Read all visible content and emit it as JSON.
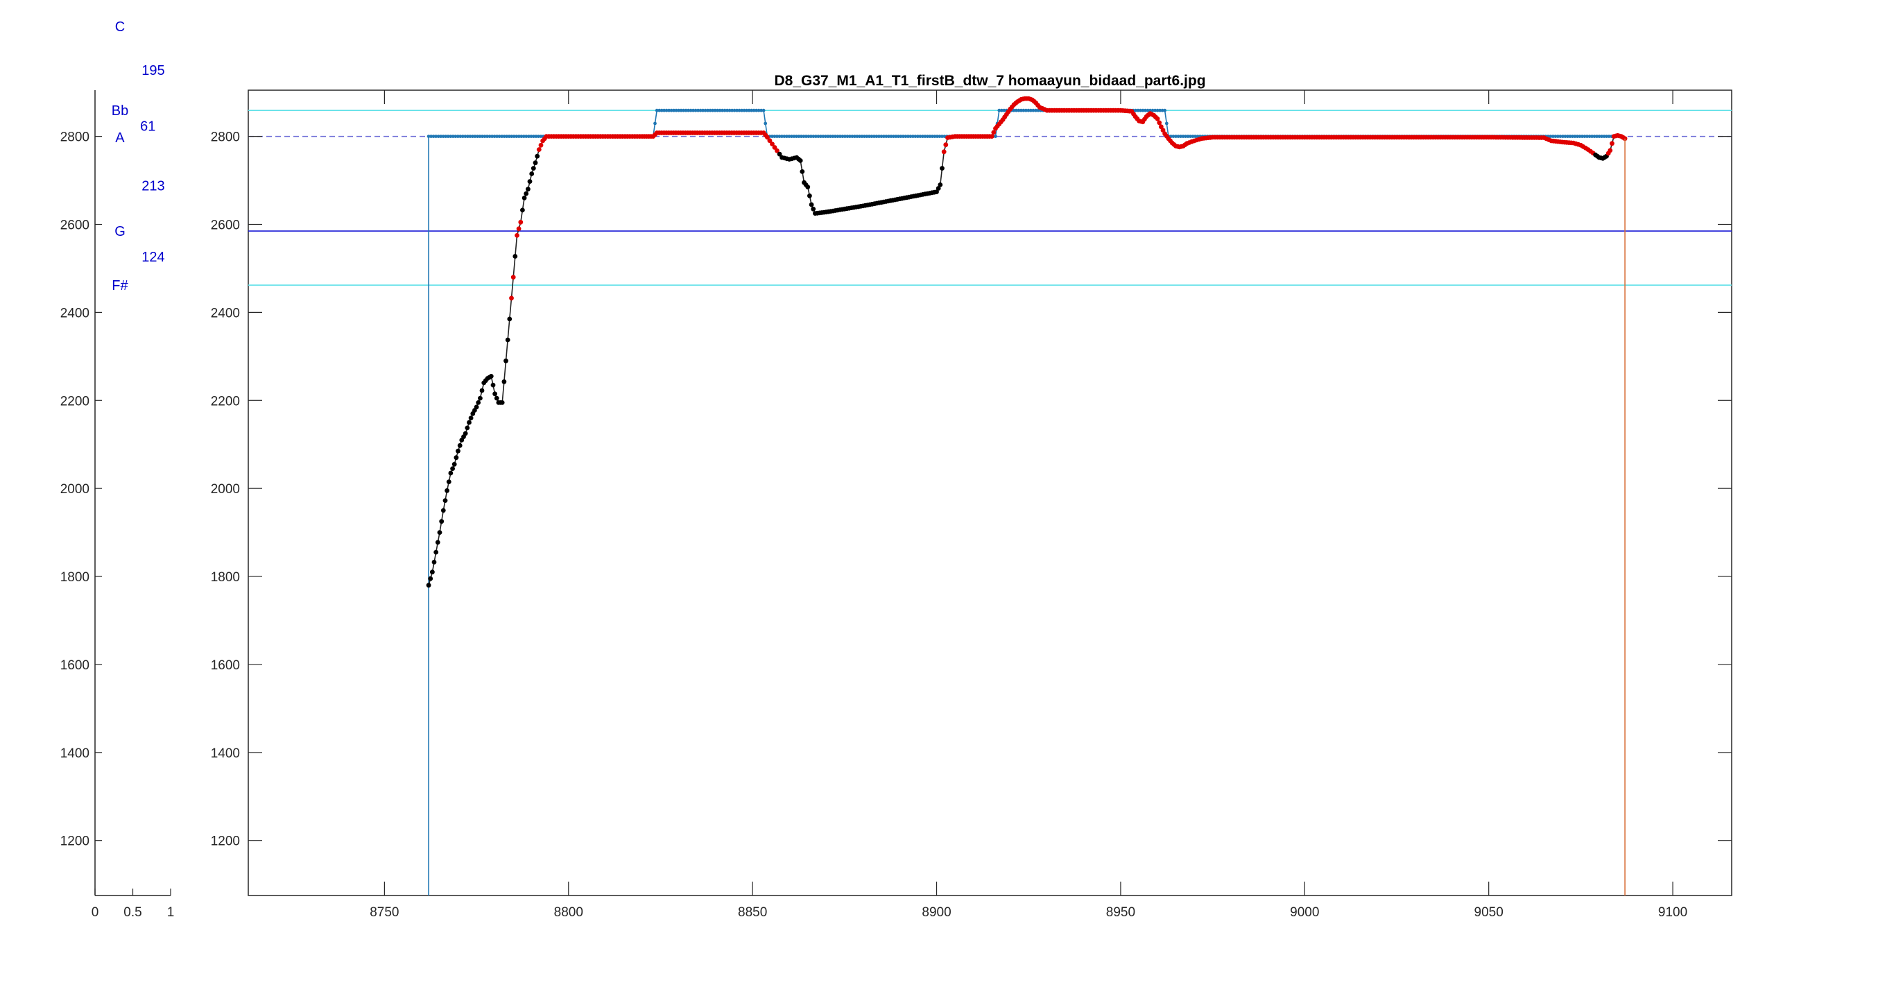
{
  "chart_data": [
    {
      "type": "scatter",
      "title": "",
      "xlabel": "",
      "ylabel": "",
      "xlim": [
        0,
        1
      ],
      "ylim": [
        1075,
        2905
      ],
      "xticks": [
        "0",
        "0.5",
        "1"
      ],
      "yticks": [
        "1200",
        "1400",
        "1600",
        "1800",
        "2000",
        "2200",
        "2400",
        "2600",
        "2800"
      ],
      "y_tick_values": [
        1200,
        1400,
        1600,
        1800,
        2000,
        2200,
        2400,
        2600,
        2800
      ],
      "x_tick_values": [
        0,
        0.5,
        1
      ],
      "note_names": [
        {
          "label": "C",
          "x": 0.33,
          "y": 3050
        },
        {
          "label": "Bb",
          "x": 0.33,
          "y": 2859
        },
        {
          "label": "A",
          "x": 0.33,
          "y": 2798
        },
        {
          "label": "G",
          "x": 0.33,
          "y": 2585
        },
        {
          "label": "F#",
          "x": 0.33,
          "y": 2462
        }
      ],
      "intervals": [
        {
          "label": "195",
          "x": 0.77,
          "y": 2951
        },
        {
          "label": "61",
          "x": 0.7,
          "y": 2824
        },
        {
          "label": "213",
          "x": 0.77,
          "y": 2688
        },
        {
          "label": "124",
          "x": 0.77,
          "y": 2527
        }
      ],
      "colors": {
        "text": "#0000cc",
        "axis": "#262626"
      }
    },
    {
      "type": "line",
      "title": "D8_G37_M1_A1_T1_firstB_dtw_7 homaayun_bidaad_part6.jpg",
      "xlabel": "",
      "ylabel": "",
      "xlim": [
        8713,
        9116
      ],
      "ylim": [
        1075,
        2905
      ],
      "x_tick_values": [
        8750,
        8800,
        8850,
        8900,
        8950,
        9000,
        9050,
        9100
      ],
      "xticks": [
        "8750",
        "8800",
        "8850",
        "8900",
        "8950",
        "9000",
        "9050",
        "9100"
      ],
      "y_tick_values": [
        1200,
        1400,
        1600,
        1800,
        2000,
        2200,
        2400,
        2600,
        2800
      ],
      "yticks": [
        "1200",
        "1400",
        "1600",
        "1800",
        "2000",
        "2200",
        "2400",
        "2600",
        "2800"
      ],
      "grid": false,
      "reference_lines": [
        {
          "y": 2859,
          "color": "#5fe0e8"
        },
        {
          "y": 2800,
          "color": "#6a6ad6",
          "style": "dashed"
        },
        {
          "y": 2585,
          "color": "#1a1ad6"
        },
        {
          "y": 2462,
          "color": "#5fe0e8"
        }
      ],
      "series": [
        {
          "style": "reference",
          "color": "#1f77b4",
          "points": [
            [
              8762,
              1075
            ],
            [
              8762,
              2800
            ],
            [
              8823,
              2800
            ],
            [
              8824,
              2859
            ],
            [
              8853,
              2859
            ],
            [
              8854,
              2800
            ],
            [
              8916,
              2800
            ],
            [
              8917,
              2859
            ],
            [
              8962,
              2859
            ],
            [
              8963,
              2800
            ],
            [
              9084,
              2800
            ],
            [
              9086,
              2800
            ]
          ]
        },
        {
          "style": "pitch",
          "color": "#000000",
          "points": [
            [
              8762,
              1780
            ],
            [
              8763,
              1810
            ],
            [
              8764,
              1855
            ],
            [
              8765,
              1900
            ],
            [
              8766,
              1950
            ],
            [
              8767,
              1995
            ],
            [
              8768,
              2035
            ],
            [
              8769,
              2055
            ],
            [
              8770,
              2085
            ],
            [
              8771,
              2110
            ],
            [
              8772,
              2125
            ],
            [
              8773,
              2150
            ],
            [
              8774,
              2170
            ],
            [
              8775,
              2185
            ],
            [
              8776,
              2205
            ],
            [
              8777,
              2240
            ],
            [
              8778,
              2250
            ],
            [
              8779,
              2255
            ],
            [
              8780,
              2215
            ],
            [
              8781,
              2195
            ],
            [
              8782,
              2195
            ],
            [
              8783,
              2290
            ],
            [
              8784,
              2385
            ],
            [
              8785,
              2480
            ],
            [
              8786,
              2575
            ],
            [
              8787,
              2605
            ],
            [
              8788,
              2660
            ],
            [
              8789,
              2680
            ],
            [
              8790,
              2715
            ],
            [
              8791,
              2740
            ],
            [
              8792,
              2770
            ],
            [
              8793,
              2790
            ],
            [
              8794,
              2800
            ],
            [
              8800,
              2800
            ],
            [
              8810,
              2800
            ],
            [
              8820,
              2800
            ],
            [
              8823,
              2800
            ],
            [
              8824,
              2808
            ],
            [
              8835,
              2808
            ],
            [
              8845,
              2808
            ],
            [
              8853,
              2808
            ],
            [
              8854,
              2798
            ],
            [
              8856,
              2775
            ],
            [
              8858,
              2752
            ],
            [
              8860,
              2748
            ],
            [
              8862,
              2752
            ],
            [
              8863,
              2745
            ],
            [
              8864,
              2695
            ],
            [
              8865,
              2685
            ],
            [
              8866,
              2645
            ],
            [
              8867,
              2625
            ],
            [
              8870,
              2628
            ],
            [
              8875,
              2635
            ],
            [
              8880,
              2642
            ],
            [
              8885,
              2650
            ],
            [
              8890,
              2658
            ],
            [
              8895,
              2666
            ],
            [
              8900,
              2674
            ],
            [
              8901,
              2690
            ],
            [
              8902,
              2765
            ],
            [
              8903,
              2797
            ],
            [
              8905,
              2800
            ],
            [
              8910,
              2800
            ],
            [
              8915,
              2800
            ],
            [
              8916,
              2818
            ],
            [
              8917,
              2828
            ],
            [
              8918,
              2838
            ],
            [
              8919,
              2850
            ],
            [
              8920,
              2862
            ],
            [
              8921,
              2872
            ],
            [
              8922,
              2879
            ],
            [
              8923,
              2884
            ],
            [
              8924,
              2886
            ],
            [
              8925,
              2886
            ],
            [
              8926,
              2883
            ],
            [
              8927,
              2876
            ],
            [
              8928,
              2866
            ],
            [
              8930,
              2859
            ],
            [
              8940,
              2859
            ],
            [
              8950,
              2859
            ],
            [
              8953,
              2857
            ],
            [
              8954,
              2845
            ],
            [
              8955,
              2835
            ],
            [
              8956,
              2833
            ],
            [
              8957,
              2845
            ],
            [
              8958,
              2852
            ],
            [
              8959,
              2848
            ],
            [
              8960,
              2840
            ],
            [
              8961,
              2822
            ],
            [
              8962,
              2806
            ],
            [
              8963,
              2795
            ],
            [
              8964,
              2785
            ],
            [
              8965,
              2778
            ],
            [
              8966,
              2776
            ],
            [
              8967,
              2778
            ],
            [
              8968,
              2784
            ],
            [
              8970,
              2790
            ],
            [
              8972,
              2795
            ],
            [
              8975,
              2798
            ],
            [
              9000,
              2798
            ],
            [
              9025,
              2798
            ],
            [
              9050,
              2798
            ],
            [
              9065,
              2797
            ],
            [
              9067,
              2790
            ],
            [
              9070,
              2787
            ],
            [
              9073,
              2785
            ],
            [
              9075,
              2780
            ],
            [
              9077,
              2770
            ],
            [
              9079,
              2758
            ],
            [
              9080,
              2752
            ],
            [
              9081,
              2750
            ],
            [
              9082,
              2755
            ],
            [
              9083,
              2768
            ],
            [
              9084,
              2800
            ],
            [
              9085,
              2802
            ],
            [
              9086,
              2800
            ],
            [
              9087,
              2795
            ]
          ]
        },
        {
          "style": "overlay",
          "color": "#d9713c",
          "points": [
            [
              9087,
              2795
            ],
            [
              9087,
              1075
            ]
          ]
        }
      ],
      "colors": {
        "note": "#e00000",
        "slide": "#000000",
        "reference": "#1f77b4",
        "axis": "#262626"
      }
    }
  ]
}
